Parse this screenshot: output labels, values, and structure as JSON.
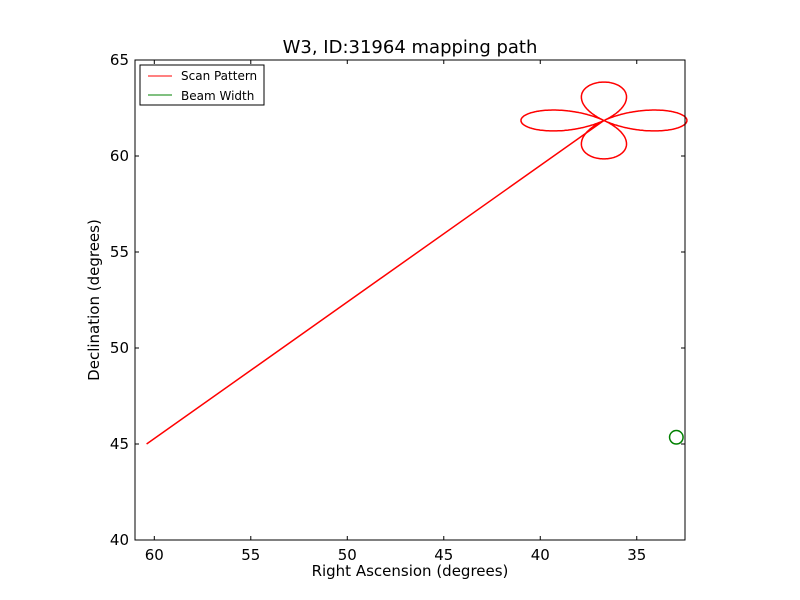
{
  "chart_data": {
    "type": "line",
    "title": "W3, ID:31964 mapping path",
    "xlabel": "Right Ascension (degrees)",
    "ylabel": "Declination (degrees)",
    "xlim": [
      61,
      32.5
    ],
    "ylim": [
      40,
      65
    ],
    "x_ticks": [
      60,
      55,
      50,
      45,
      40,
      35
    ],
    "y_ticks": [
      40,
      45,
      50,
      55,
      60,
      65
    ],
    "grid": false,
    "legend_position": "top-left",
    "series": [
      {
        "name": "Scan Pattern",
        "color": "#ff0000",
        "segments": [
          {
            "shape": "path",
            "x": [
              60.4,
              36.7
            ],
            "y": [
              45.0,
              61.85
            ]
          },
          {
            "shape": "four-petal rosette",
            "center_x": 36.7,
            "center_y": 61.85,
            "horizontal_half_extent": 4.3,
            "vertical_half_extent": 2.0
          }
        ]
      },
      {
        "name": "Beam Width",
        "color": "#008000",
        "segments": [
          {
            "shape": "circle",
            "center_x": 32.95,
            "center_y": 45.35,
            "radius": 0.35
          }
        ]
      }
    ]
  }
}
